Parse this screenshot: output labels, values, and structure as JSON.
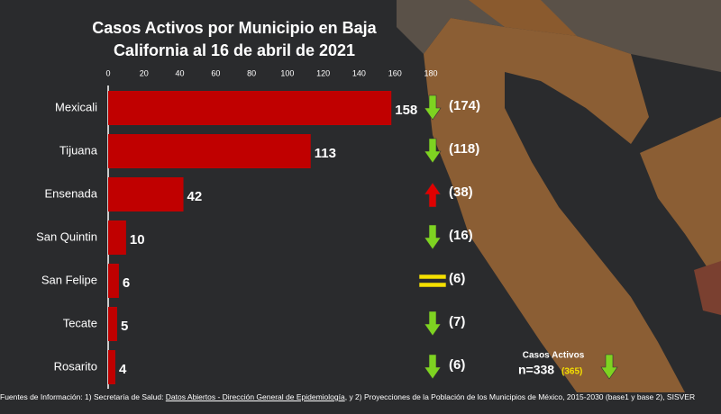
{
  "chart_data": {
    "type": "bar",
    "title": [
      "Casos Activos por Municipio en Baja",
      "California al 16 de abril de 2021"
    ],
    "categories": [
      "Mexicali",
      "Tijuana",
      "Ensenada",
      "San Quintin",
      "San Felipe",
      "Tecate",
      "Rosarito"
    ],
    "values": [
      158,
      113,
      42,
      10,
      6,
      5,
      4
    ],
    "color": "#c00000",
    "xlim": [
      0,
      180
    ],
    "xticks": [
      0,
      20,
      40,
      60,
      80,
      100,
      120,
      140,
      160,
      180
    ],
    "previous": {
      "values": [
        174,
        118,
        38,
        16,
        6,
        7,
        6
      ],
      "value_labels": [
        "(174)",
        "(118)",
        "(38)",
        "(16)",
        "(6)",
        "(7)",
        "(6)"
      ]
    },
    "trend": [
      "down",
      "down",
      "up",
      "down",
      "equal",
      "down",
      "down"
    ],
    "trend_colors": {
      "down": "#7ed321",
      "up": "#e00000",
      "equal": "#f5e000"
    },
    "summary": {
      "label": "Casos Activos",
      "current": "n=338",
      "previous": "(365)",
      "trend": "down"
    }
  },
  "footer": {
    "parts": [
      "Fuentes de Información: 1) Secretaría de Salud: ",
      "Datos Abiertos - Dirección General de Epidemiología",
      ", y 2) Proyecciones de la Población de los Municipios de México, 2015-2030 (base1 y base 2), SISVER"
    ]
  }
}
